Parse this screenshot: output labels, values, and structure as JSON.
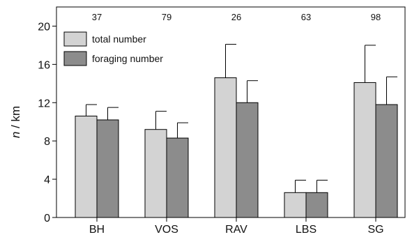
{
  "chart_data": {
    "type": "bar",
    "categories": [
      "BH",
      "VOS",
      "RAV",
      "LBS",
      "SG"
    ],
    "counts": [
      "37",
      "79",
      "26",
      "63",
      "98"
    ],
    "series": [
      {
        "name": "total number",
        "values": [
          10.6,
          9.2,
          14.6,
          2.6,
          14.1
        ],
        "errors": [
          1.2,
          1.9,
          3.5,
          1.3,
          3.9
        ],
        "color": "#d3d3d3"
      },
      {
        "name": "foraging number",
        "values": [
          10.2,
          8.3,
          12.0,
          2.6,
          11.8
        ],
        "errors": [
          1.3,
          1.6,
          2.3,
          1.3,
          2.9
        ],
        "color": "#8c8c8c"
      }
    ],
    "ylabel_italic": "n",
    "ylabel_unit": " / km",
    "ylim": [
      0,
      22
    ],
    "yticks": [
      0,
      4,
      8,
      12,
      16,
      20
    ],
    "legend_position": "top-left",
    "grid": false
  }
}
